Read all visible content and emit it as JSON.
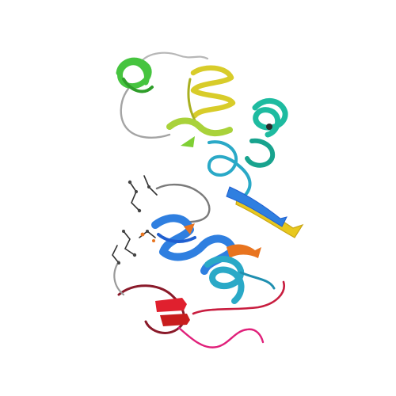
{
  "image": {
    "subject": "protein-ribbon-structure",
    "background_color": "#ffffff",
    "palette": {
      "red": "#e0202e",
      "crimson": "#c81d3f",
      "orange": "#e8741f",
      "blue": "#2f7fe0",
      "deep_blue": "#1f5fd0",
      "cyan": "#2aa9c7",
      "teal": "#1ebba0",
      "green": "#46c43f",
      "yellow_green": "#a9d23a",
      "yellow": "#e8c81e",
      "gold": "#c9a614",
      "coil_grey": "#8e8e8e",
      "stick_dark": "#333333"
    }
  }
}
